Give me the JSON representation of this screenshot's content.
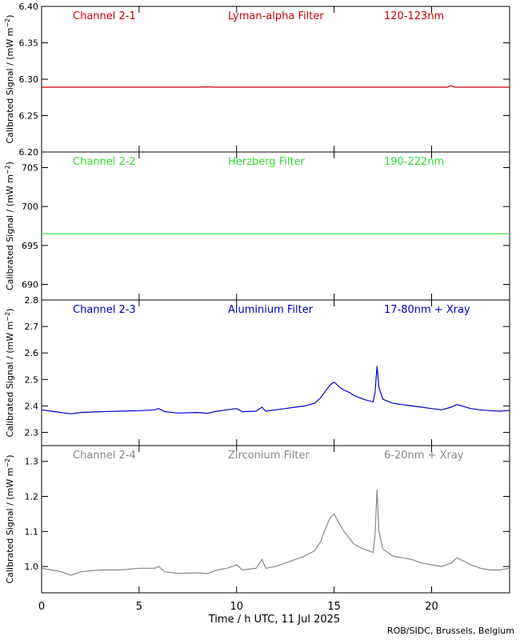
{
  "xlabel": "Time / h UTC, 11 Jul 2025",
  "credit": "ROB/SIDC, Brussels, Belgium",
  "ylabel": "Calibrated Signal / (mW m",
  "ylabel_exp": "−2",
  "ylabel_close": ")",
  "x_ticks": [
    0,
    5,
    10,
    15,
    20
  ],
  "xlim": [
    0,
    24
  ],
  "chart_data": [
    {
      "type": "line",
      "channel": "Channel 2-1",
      "filter": "Lyman-alpha Filter",
      "band": "120-123nm",
      "color": "#cc0000",
      "ylim": [
        6.2,
        6.4
      ],
      "y_ticks": [
        "6.20",
        "6.25",
        "6.30",
        "6.35",
        "6.40"
      ],
      "x": [
        0,
        2,
        4,
        6,
        8,
        8.5,
        9,
        10,
        12,
        14,
        16,
        18,
        20,
        20.8,
        21,
        21.2,
        22,
        24
      ],
      "y": [
        6.289,
        6.289,
        6.289,
        6.289,
        6.289,
        6.2895,
        6.289,
        6.289,
        6.289,
        6.289,
        6.289,
        6.289,
        6.289,
        6.289,
        6.291,
        6.289,
        6.289,
        6.289
      ]
    },
    {
      "type": "line",
      "channel": "Channel 2-2",
      "filter": "Herzberg Filter",
      "band": "190-222nm",
      "color": "#33dd33",
      "ylim": [
        688,
        707
      ],
      "y_ticks": [
        "690",
        "695",
        "700",
        "705"
      ],
      "x": [
        0,
        4,
        8,
        12,
        16,
        20,
        24
      ],
      "y": [
        696.5,
        696.5,
        696.5,
        696.5,
        696.5,
        696.5,
        696.5
      ]
    },
    {
      "type": "line",
      "channel": "Channel 2-3",
      "filter": "Aluminium Filter",
      "band": "17-80nm + Xray",
      "color": "#0000cc",
      "ylim": [
        2.25,
        2.8
      ],
      "y_ticks": [
        "2.3",
        "2.4",
        "2.5",
        "2.6",
        "2.7",
        "2.8"
      ],
      "x": [
        0,
        0.5,
        1,
        1.5,
        2,
        3,
        4,
        5,
        5.8,
        6,
        6.3,
        7,
        8,
        8.5,
        9,
        9.5,
        10,
        10.3,
        11,
        11.3,
        11.5,
        12,
        12.5,
        13,
        13.5,
        14,
        14.3,
        14.5,
        14.8,
        15,
        15.3,
        15.5,
        15.8,
        16,
        16.5,
        17,
        17.1,
        17.2,
        17.3,
        17.5,
        18,
        18.5,
        19,
        19.5,
        20,
        20.5,
        21,
        21.3,
        22,
        22.5,
        23,
        23.5,
        24
      ],
      "y": [
        2.385,
        2.38,
        2.375,
        2.37,
        2.375,
        2.378,
        2.38,
        2.382,
        2.385,
        2.39,
        2.378,
        2.373,
        2.375,
        2.372,
        2.38,
        2.385,
        2.39,
        2.378,
        2.38,
        2.395,
        2.38,
        2.385,
        2.39,
        2.395,
        2.4,
        2.41,
        2.43,
        2.45,
        2.48,
        2.49,
        2.47,
        2.46,
        2.45,
        2.44,
        2.425,
        2.415,
        2.45,
        2.55,
        2.47,
        2.425,
        2.41,
        2.405,
        2.4,
        2.395,
        2.39,
        2.385,
        2.395,
        2.405,
        2.39,
        2.385,
        2.382,
        2.38,
        2.383
      ]
    },
    {
      "type": "line",
      "channel": "Channel 2-4",
      "filter": "Zirconium Filter",
      "band": "6-20nm + Xray",
      "color": "#888888",
      "ylim": [
        0.925,
        1.345
      ],
      "y_ticks": [
        "1.0",
        "1.1",
        "1.2",
        "1.3"
      ],
      "x": [
        0,
        0.5,
        1,
        1.5,
        2,
        3,
        4,
        5,
        5.8,
        6,
        6.3,
        7,
        8,
        8.5,
        9,
        9.5,
        10,
        10.3,
        11,
        11.3,
        11.5,
        12,
        12.5,
        13,
        13.5,
        14,
        14.3,
        14.5,
        14.8,
        15,
        15.3,
        15.5,
        15.8,
        16,
        16.5,
        17,
        17.1,
        17.2,
        17.3,
        17.5,
        18,
        18.5,
        19,
        19.5,
        20,
        20.5,
        21,
        21.3,
        22,
        22.5,
        23,
        23.5,
        24
      ],
      "y": [
        0.995,
        0.99,
        0.985,
        0.975,
        0.985,
        0.99,
        0.99,
        0.995,
        0.995,
        1.0,
        0.985,
        0.98,
        0.982,
        0.98,
        0.99,
        0.995,
        1.005,
        0.99,
        0.995,
        1.02,
        0.995,
        1.0,
        1.01,
        1.02,
        1.03,
        1.045,
        1.07,
        1.1,
        1.14,
        1.15,
        1.12,
        1.1,
        1.08,
        1.065,
        1.05,
        1.04,
        1.09,
        1.22,
        1.1,
        1.05,
        1.03,
        1.025,
        1.02,
        1.01,
        1.005,
        1.0,
        1.01,
        1.025,
        1.005,
        0.995,
        0.99,
        0.99,
        0.995
      ]
    }
  ]
}
